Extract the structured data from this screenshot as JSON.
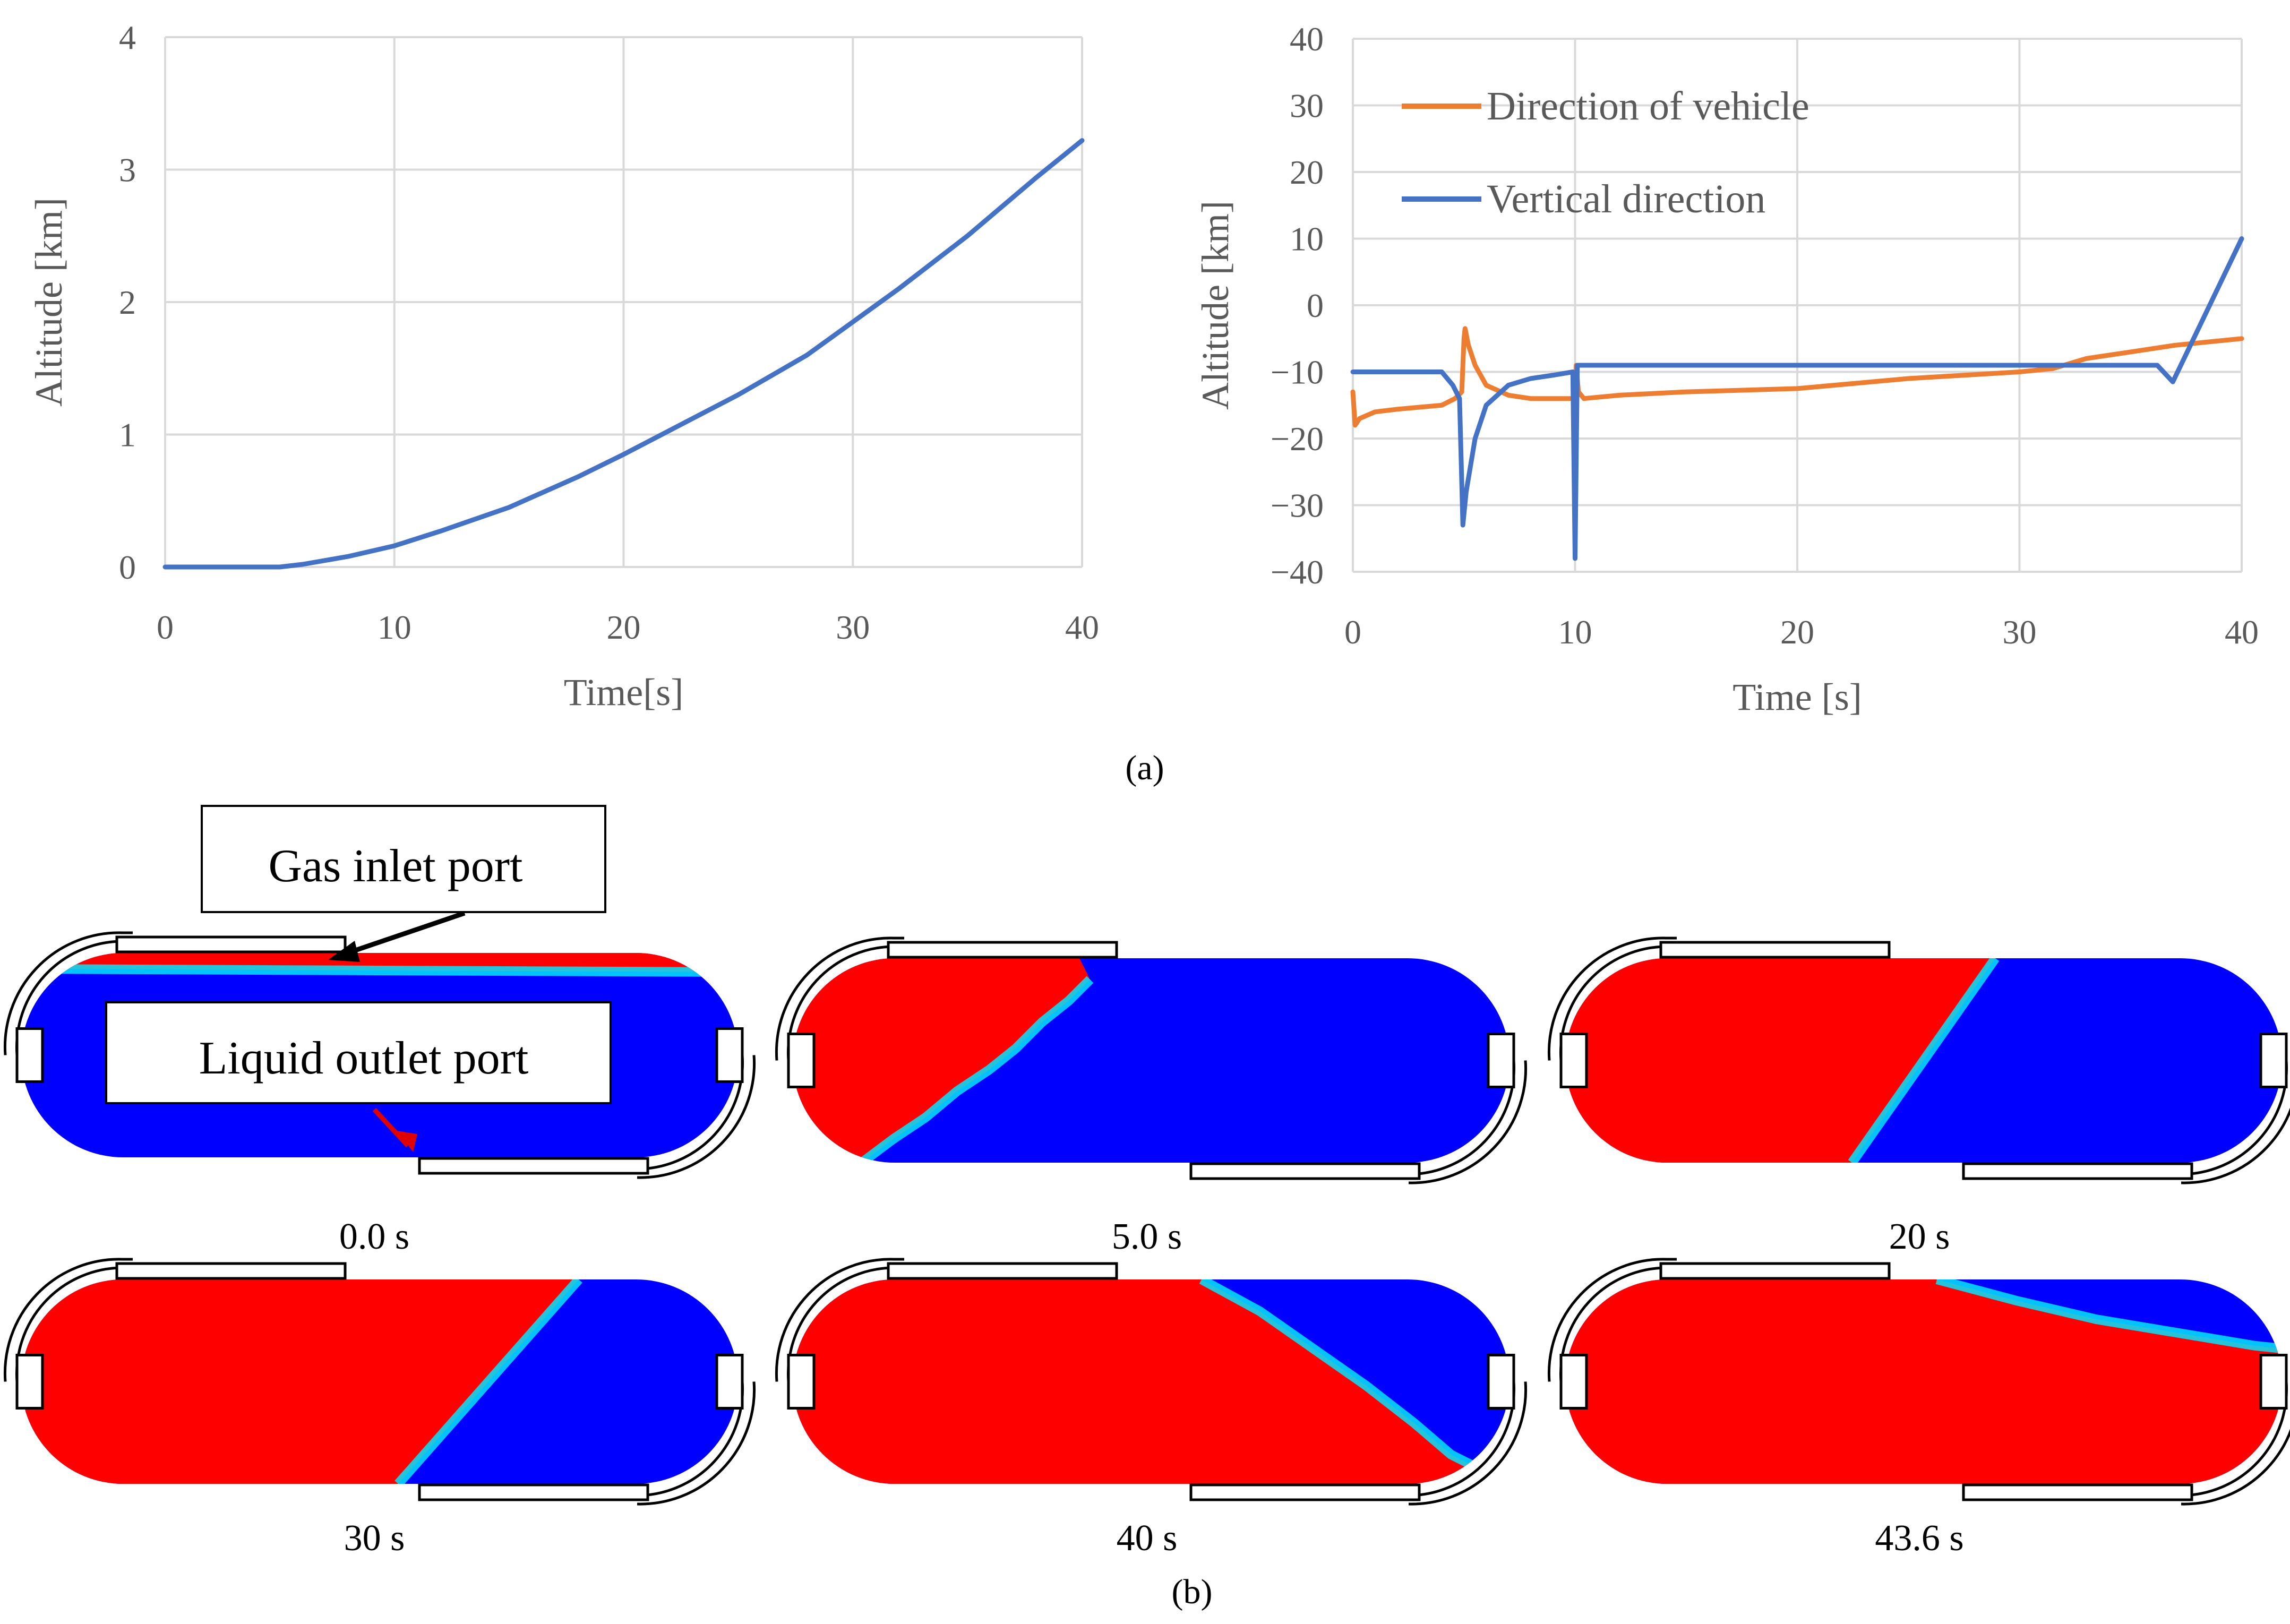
{
  "chart_data": [
    {
      "type": "line",
      "title": "",
      "xlabel": "Time[s]",
      "ylabel": "Altitude [km]",
      "xlim": [
        0,
        40
      ],
      "ylim": [
        0,
        4
      ],
      "xticks": [
        "0",
        "10",
        "20",
        "30",
        "40"
      ],
      "yticks": [
        "0",
        "1",
        "2",
        "3",
        "4"
      ],
      "grid": true,
      "series": [
        {
          "name": "Altitude",
          "color": "#4472c4",
          "x": [
            0,
            5,
            6,
            8,
            10,
            12,
            15,
            18,
            20,
            22,
            25,
            28,
            30,
            32,
            35,
            38,
            40
          ],
          "y": [
            0,
            0,
            0.02,
            0.08,
            0.16,
            0.27,
            0.45,
            0.68,
            0.85,
            1.03,
            1.3,
            1.6,
            1.85,
            2.1,
            2.5,
            2.94,
            3.22
          ]
        }
      ]
    },
    {
      "type": "line",
      "title": "",
      "xlabel": "Time [s]",
      "ylabel": "Altitude [km]",
      "xlim": [
        0,
        40
      ],
      "ylim": [
        -40,
        40
      ],
      "xticks": [
        "0",
        "10",
        "20",
        "30",
        "40"
      ],
      "yticks": [
        "40",
        "30",
        "20",
        "10",
        "0",
        "−10",
        "−20",
        "−30",
        "−40"
      ],
      "grid": true,
      "legend_position": "top-left",
      "series": [
        {
          "name": "Direction of vehicle",
          "color": "#ed7d31",
          "x": [
            0,
            0.1,
            0.3,
            1,
            2,
            3,
            4,
            4.6,
            4.9,
            5.0,
            5.05,
            5.2,
            5.5,
            6,
            7,
            8,
            9,
            10,
            10.05,
            10.15,
            10.4,
            12,
            15,
            20,
            25,
            30,
            31.5,
            33,
            35,
            37,
            40
          ],
          "y": [
            -13,
            -18,
            -17,
            -16,
            -15.6,
            -15.3,
            -15,
            -14,
            -13,
            -5,
            -3.5,
            -6,
            -9,
            -12,
            -13.5,
            -14,
            -14,
            -14,
            -9,
            -13,
            -14,
            -13.5,
            -13,
            -12.5,
            -11,
            -10,
            -9.5,
            -8,
            -7,
            -6,
            -5
          ]
        },
        {
          "name": "Vertical direction",
          "color": "#4472c4",
          "x": [
            0,
            3.5,
            4,
            4.5,
            4.8,
            4.95,
            5.1,
            5.5,
            6,
            7,
            8,
            9,
            9.9,
            10.0,
            10.1,
            10.2,
            12,
            15,
            20,
            25,
            30,
            36.2,
            36.9,
            40
          ],
          "y": [
            -10,
            -10,
            -10,
            -12,
            -14,
            -33,
            -28,
            -20,
            -15,
            -12,
            -11,
            -10.5,
            -10,
            -38,
            -9,
            -9,
            -9,
            -9,
            -9,
            -9,
            -9,
            -9,
            -11.5,
            10
          ]
        }
      ]
    }
  ],
  "captions": {
    "a": "(a)",
    "b": "(b)"
  },
  "tank_panels": {
    "labels": {
      "gas_inlet": "Gas inlet port",
      "liquid_outlet": "Liquid outlet port"
    },
    "colors": {
      "gas": "#ff0000",
      "liquid": "#0000ff",
      "interface": "#00e5ff"
    },
    "snapshots": [
      "0.0 s",
      "5.0 s",
      "20 s",
      "30 s",
      "40 s",
      "43.6 s"
    ]
  }
}
